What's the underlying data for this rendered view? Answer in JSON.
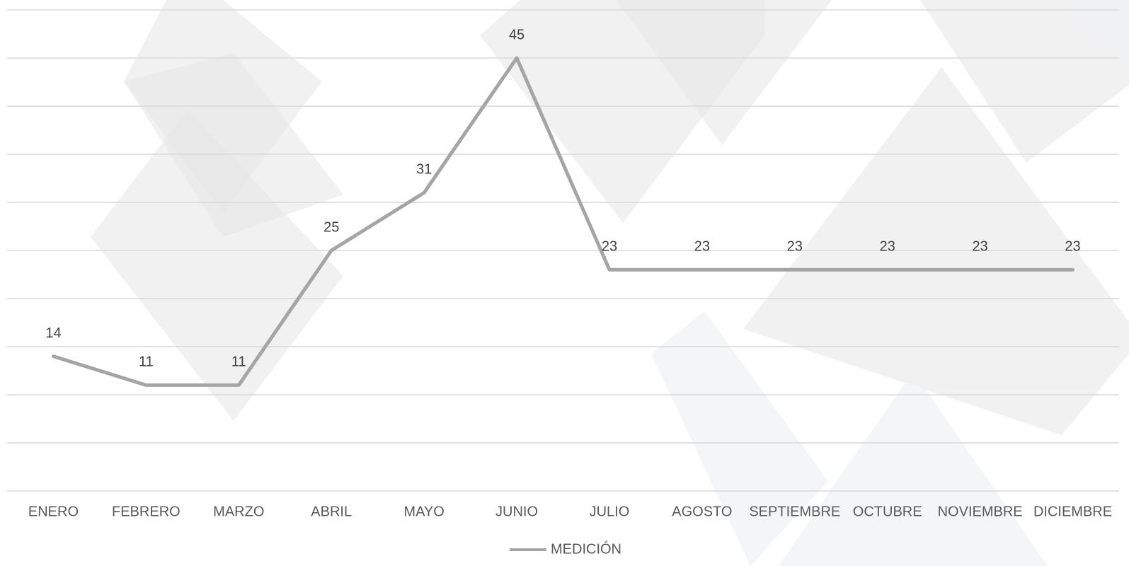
{
  "chart_data": {
    "type": "line",
    "categories": [
      "ENERO",
      "FEBRERO",
      "MARZO",
      "ABRIL",
      "MAYO",
      "JUNIO",
      "JULIO",
      "AGOSTO",
      "SEPTIEMBRE",
      "OCTUBRE",
      "NOVIEMBRE",
      "DICIEMBRE"
    ],
    "series": [
      {
        "name": "MEDICIÓN",
        "color": "#a5a5a5",
        "values": [
          14,
          11,
          11,
          25,
          31,
          45,
          23,
          23,
          23,
          23,
          23,
          23
        ]
      }
    ],
    "ylim": [
      0,
      50
    ],
    "yticks": [
      0,
      5,
      10,
      15,
      20,
      25,
      30,
      35,
      40,
      45,
      50
    ],
    "ytick_labels": false,
    "grid": true,
    "legend": "bottom",
    "data_labels": true
  }
}
